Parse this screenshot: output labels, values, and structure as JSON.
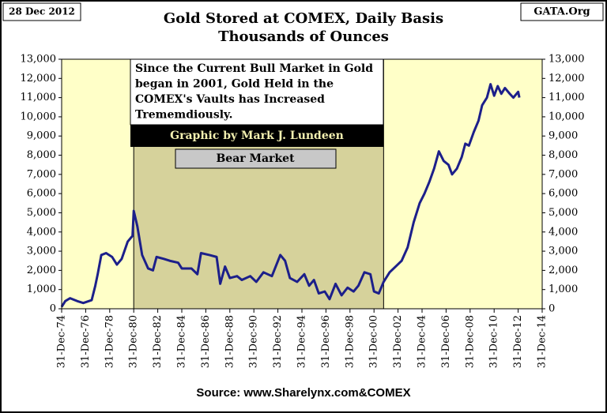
{
  "chart_data": {
    "type": "line",
    "title": [
      "Gold Stored at COMEX, Daily Basis",
      "Thousands of Ounces"
    ],
    "date_label": "28 Dec 2012",
    "credit": "GATA.Org",
    "source": "Source:  www.Sharelynx.com&COMEX",
    "annotation": [
      "Since the Current Bull Market in Gold",
      "began in 2001, Gold Held in the",
      "COMEX's  Vaults has Increased",
      "Trememdiously."
    ],
    "byline": "Graphic by Mark J. Lundeen",
    "bear_market": {
      "label": "Bear Market",
      "start": 1981.0,
      "end": 2001.8
    },
    "xlim": [
      1975,
      2015
    ],
    "xticks": [
      {
        "value": 1975,
        "label": "31-Dec-74"
      },
      {
        "value": 1977,
        "label": "31-Dec-76"
      },
      {
        "value": 1979,
        "label": "31-Dec-78"
      },
      {
        "value": 1981,
        "label": "31-Dec-80"
      },
      {
        "value": 1983,
        "label": "31-Dec-82"
      },
      {
        "value": 1985,
        "label": "31-Dec-84"
      },
      {
        "value": 1987,
        "label": "31-Dec-86"
      },
      {
        "value": 1989,
        "label": "31-Dec-88"
      },
      {
        "value": 1991,
        "label": "31-Dec-90"
      },
      {
        "value": 1993,
        "label": "31-Dec-92"
      },
      {
        "value": 1995,
        "label": "31-Dec-94"
      },
      {
        "value": 1997,
        "label": "31-Dec-96"
      },
      {
        "value": 1999,
        "label": "31-Dec-98"
      },
      {
        "value": 2001,
        "label": "31-Dec-00"
      },
      {
        "value": 2003,
        "label": "31-Dec-02"
      },
      {
        "value": 2005,
        "label": "31-Dec-04"
      },
      {
        "value": 2007,
        "label": "31-Dec-06"
      },
      {
        "value": 2009,
        "label": "31-Dec-08"
      },
      {
        "value": 2011,
        "label": "31-Dec-10"
      },
      {
        "value": 2013,
        "label": "31-Dec-12"
      },
      {
        "value": 2015,
        "label": "31-Dec-14"
      }
    ],
    "ylim": [
      0,
      13000
    ],
    "yticks": [
      0,
      {
        "value": 1000,
        "label": "1,000"
      },
      {
        "value": 2000,
        "label": "2,000"
      },
      {
        "value": 3000,
        "label": "3,000"
      },
      {
        "value": 4000,
        "label": "4,000"
      },
      {
        "value": 5000,
        "label": "5,000"
      },
      {
        "value": 6000,
        "label": "6,000"
      },
      {
        "value": 7000,
        "label": "7,000"
      },
      {
        "value": 8000,
        "label": "8,000"
      },
      {
        "value": 9000,
        "label": "9,000"
      },
      {
        "value": 10000,
        "label": "10,000"
      },
      {
        "value": 11000,
        "label": "11,000"
      },
      {
        "value": 12000,
        "label": "12,000"
      },
      {
        "value": 13000,
        "label": "13,000"
      }
    ],
    "grid": false,
    "color": "#1c1f8a",
    "x": [
      1975.0,
      1975.3,
      1975.7,
      1976.3,
      1976.8,
      1977.5,
      1977.8,
      1978.0,
      1978.3,
      1978.7,
      1979.2,
      1979.6,
      1980.0,
      1980.5,
      1980.9,
      1981.0,
      1981.3,
      1981.7,
      1982.2,
      1982.6,
      1982.9,
      1983.5,
      1984.0,
      1984.7,
      1985.0,
      1985.8,
      1986.3,
      1986.6,
      1987.3,
      1987.9,
      1988.2,
      1988.6,
      1989.0,
      1989.6,
      1990.0,
      1990.7,
      1991.2,
      1991.8,
      1992.5,
      1993.2,
      1993.6,
      1994.0,
      1994.6,
      1995.2,
      1995.6,
      1996.0,
      1996.4,
      1996.9,
      1997.3,
      1997.8,
      1998.3,
      1998.8,
      1999.3,
      1999.7,
      2000.2,
      2000.7,
      2001.0,
      2001.4,
      2001.8,
      2002.3,
      2002.8,
      2003.3,
      2003.8,
      2004.3,
      2004.8,
      2005.2,
      2005.6,
      2006.0,
      2006.4,
      2006.8,
      2007.2,
      2007.5,
      2007.9,
      2008.3,
      2008.6,
      2008.9,
      2009.3,
      2009.7,
      2010.0,
      2010.4,
      2010.7,
      2011.0,
      2011.3,
      2011.6,
      2011.9,
      2012.3,
      2012.6,
      2013.0,
      2013.1
    ],
    "values": [
      100,
      400,
      550,
      400,
      300,
      450,
      1200,
      1800,
      2800,
      2900,
      2700,
      2300,
      2600,
      3500,
      3800,
      5100,
      4300,
      2800,
      2100,
      2000,
      2700,
      2600,
      2500,
      2400,
      2100,
      2100,
      1800,
      2900,
      2800,
      2700,
      1300,
      2200,
      1600,
      1700,
      1500,
      1700,
      1400,
      1900,
      1700,
      2800,
      2500,
      1600,
      1400,
      1800,
      1200,
      1500,
      800,
      900,
      500,
      1300,
      700,
      1100,
      900,
      1200,
      1900,
      1800,
      900,
      800,
      1400,
      1900,
      2200,
      2500,
      3200,
      4500,
      5500,
      6000,
      6600,
      7300,
      8200,
      7700,
      7500,
      7000,
      7300,
      7900,
      8600,
      8500,
      9200,
      9800,
      10600,
      11000,
      11700,
      11100,
      11600,
      11200,
      11500,
      11200,
      11000,
      11300,
      11000
    ]
  }
}
